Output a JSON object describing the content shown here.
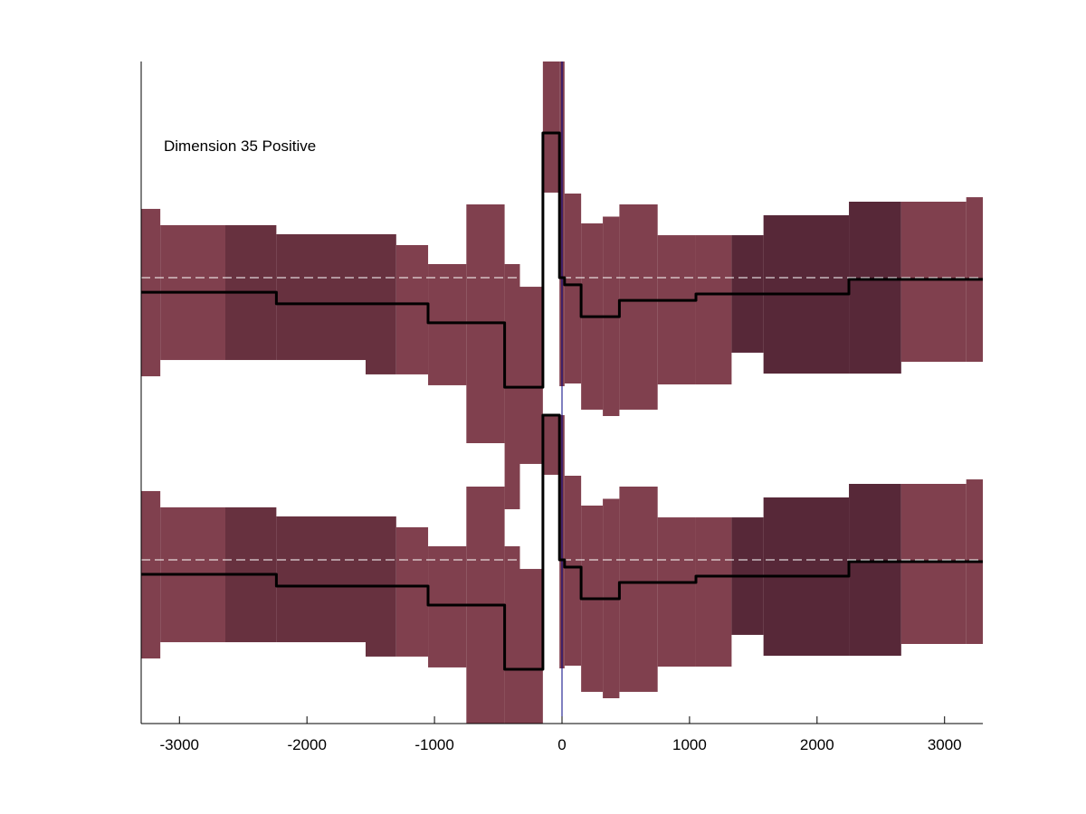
{
  "chart_data": {
    "type": "line",
    "annotation": "Dimension 35 Positive",
    "xlim": [
      -3300,
      3300
    ],
    "xticks": [
      -3000,
      -2000,
      -1000,
      0,
      1000,
      2000,
      3000
    ],
    "xtick_labels": [
      "-3000",
      "-2000",
      "-1000",
      "0",
      "1000",
      "2000",
      "3000"
    ],
    "grid": false,
    "legend": "none",
    "colors": {
      "band_light": "#80404E",
      "band_mid": "#67313F",
      "band_dark": "#572838",
      "mean_line": "#000000",
      "reference_line": "#FFFFFF",
      "zero_marker": "#000080"
    },
    "panels": [
      {
        "baseline": 0,
        "segments": [
          {
            "x0": -3300,
            "x1": -3150,
            "mean": -0.107,
            "lo": -0.727,
            "hi": 0.507,
            "shade": "light"
          },
          {
            "x0": -3150,
            "x1": -2640,
            "mean": -0.107,
            "lo": -0.607,
            "hi": 0.387,
            "shade": "light"
          },
          {
            "x0": -2640,
            "x1": -2240,
            "mean": -0.107,
            "lo": -0.607,
            "hi": 0.387,
            "shade": "mid"
          },
          {
            "x0": -2240,
            "x1": -1540,
            "mean": -0.193,
            "lo": -0.607,
            "hi": 0.32,
            "shade": "mid"
          },
          {
            "x0": -1540,
            "x1": -1300,
            "mean": -0.193,
            "lo": -0.713,
            "hi": 0.32,
            "shade": "mid"
          },
          {
            "x0": -1300,
            "x1": -1050,
            "mean": -0.193,
            "lo": -0.713,
            "hi": 0.24,
            "shade": "light"
          },
          {
            "x0": -1050,
            "x1": -750,
            "mean": -0.333,
            "lo": -0.793,
            "hi": 0.1,
            "shade": "light"
          },
          {
            "x0": -750,
            "x1": -450,
            "mean": -0.333,
            "lo": -1.22,
            "hi": 0.54,
            "shade": "light"
          },
          {
            "x0": -450,
            "x1": -330,
            "mean": -0.807,
            "lo": -1.707,
            "hi": 0.1,
            "shade": "light"
          },
          {
            "x0": -330,
            "x1": -150,
            "mean": -0.807,
            "lo": -1.373,
            "hi": -0.067,
            "shade": "light"
          },
          {
            "x0": -150,
            "x1": -20,
            "mean": 1.067,
            "lo": 0.627,
            "hi": 1.807,
            "shade": "light"
          },
          {
            "x0": -20,
            "x1": 20,
            "mean": 0.0,
            "lo": -0.8,
            "hi": 1.807,
            "shade": "light"
          },
          {
            "x0": 20,
            "x1": 150,
            "mean": -0.053,
            "lo": -0.78,
            "hi": 0.62,
            "shade": "light"
          },
          {
            "x0": 150,
            "x1": 320,
            "mean": -0.287,
            "lo": -0.973,
            "hi": 0.4,
            "shade": "light"
          },
          {
            "x0": 320,
            "x1": 450,
            "mean": -0.287,
            "lo": -1.02,
            "hi": 0.45,
            "shade": "light"
          },
          {
            "x0": 450,
            "x1": 750,
            "mean": -0.167,
            "lo": -0.973,
            "hi": 0.54,
            "shade": "light"
          },
          {
            "x0": 750,
            "x1": 1050,
            "mean": -0.167,
            "lo": -0.787,
            "hi": 0.313,
            "shade": "light"
          },
          {
            "x0": 1050,
            "x1": 1330,
            "mean": -0.12,
            "lo": -0.787,
            "hi": 0.313,
            "shade": "light"
          },
          {
            "x0": 1330,
            "x1": 1580,
            "mean": -0.12,
            "lo": -0.553,
            "hi": 0.313,
            "shade": "dark"
          },
          {
            "x0": 1580,
            "x1": 2250,
            "mean": -0.12,
            "lo": -0.707,
            "hi": 0.46,
            "shade": "dark"
          },
          {
            "x0": 2250,
            "x1": 2660,
            "mean": -0.013,
            "lo": -0.707,
            "hi": 0.56,
            "shade": "dark"
          },
          {
            "x0": 2660,
            "x1": 3170,
            "mean": -0.013,
            "lo": -0.62,
            "hi": 0.56,
            "shade": "light"
          },
          {
            "x0": 3170,
            "x1": 3300,
            "mean": -0.013,
            "lo": -0.62,
            "hi": 0.593,
            "shade": "light"
          }
        ]
      },
      {
        "baseline": 0,
        "segments": [
          {
            "x0": -3300,
            "x1": -3150,
            "mean": -0.107,
            "lo": -0.727,
            "hi": 0.507,
            "shade": "light"
          },
          {
            "x0": -3150,
            "x1": -2640,
            "mean": -0.107,
            "lo": -0.607,
            "hi": 0.387,
            "shade": "light"
          },
          {
            "x0": -2640,
            "x1": -2240,
            "mean": -0.107,
            "lo": -0.607,
            "hi": 0.387,
            "shade": "mid"
          },
          {
            "x0": -2240,
            "x1": -1540,
            "mean": -0.193,
            "lo": -0.607,
            "hi": 0.32,
            "shade": "mid"
          },
          {
            "x0": -1540,
            "x1": -1300,
            "mean": -0.193,
            "lo": -0.713,
            "hi": 0.32,
            "shade": "mid"
          },
          {
            "x0": -1300,
            "x1": -1050,
            "mean": -0.193,
            "lo": -0.713,
            "hi": 0.24,
            "shade": "light"
          },
          {
            "x0": -1050,
            "x1": -750,
            "mean": -0.333,
            "lo": -0.793,
            "hi": 0.1,
            "shade": "light"
          },
          {
            "x0": -750,
            "x1": -450,
            "mean": -0.333,
            "lo": -1.22,
            "hi": 0.54,
            "shade": "light"
          },
          {
            "x0": -450,
            "x1": -330,
            "mean": -0.807,
            "lo": -1.22,
            "hi": 0.1,
            "shade": "light"
          },
          {
            "x0": -330,
            "x1": -150,
            "mean": -0.807,
            "lo": -1.22,
            "hi": -0.067,
            "shade": "light"
          },
          {
            "x0": -150,
            "x1": -20,
            "mean": 1.067,
            "lo": 0.627,
            "hi": 1.067,
            "shade": "light"
          },
          {
            "x0": -20,
            "x1": 20,
            "mean": 0.0,
            "lo": -0.8,
            "hi": 1.067,
            "shade": "light"
          },
          {
            "x0": 20,
            "x1": 150,
            "mean": -0.053,
            "lo": -0.78,
            "hi": 0.62,
            "shade": "light"
          },
          {
            "x0": 150,
            "x1": 320,
            "mean": -0.287,
            "lo": -0.973,
            "hi": 0.4,
            "shade": "light"
          },
          {
            "x0": 320,
            "x1": 450,
            "mean": -0.287,
            "lo": -1.02,
            "hi": 0.45,
            "shade": "light"
          },
          {
            "x0": 450,
            "x1": 750,
            "mean": -0.167,
            "lo": -0.973,
            "hi": 0.54,
            "shade": "light"
          },
          {
            "x0": 750,
            "x1": 1050,
            "mean": -0.167,
            "lo": -0.787,
            "hi": 0.313,
            "shade": "light"
          },
          {
            "x0": 1050,
            "x1": 1330,
            "mean": -0.12,
            "lo": -0.787,
            "hi": 0.313,
            "shade": "light"
          },
          {
            "x0": 1330,
            "x1": 1580,
            "mean": -0.12,
            "lo": -0.553,
            "hi": 0.313,
            "shade": "dark"
          },
          {
            "x0": 1580,
            "x1": 2250,
            "mean": -0.12,
            "lo": -0.707,
            "hi": 0.46,
            "shade": "dark"
          },
          {
            "x0": 2250,
            "x1": 2660,
            "mean": -0.013,
            "lo": -0.707,
            "hi": 0.56,
            "shade": "dark"
          },
          {
            "x0": 2660,
            "x1": 3170,
            "mean": -0.013,
            "lo": -0.62,
            "hi": 0.56,
            "shade": "light"
          },
          {
            "x0": 3170,
            "x1": 3300,
            "mean": -0.013,
            "lo": -0.62,
            "hi": 0.593,
            "shade": "light"
          }
        ]
      }
    ]
  }
}
